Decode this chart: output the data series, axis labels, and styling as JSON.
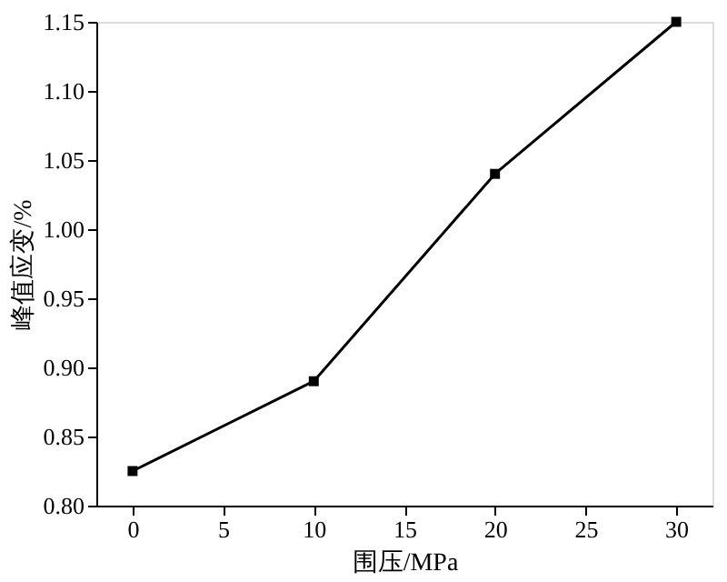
{
  "chart_data": {
    "type": "line",
    "xlabel": "围压/MPa",
    "ylabel": "峰值应变/%",
    "x": [
      0,
      10,
      20,
      30
    ],
    "series": [
      {
        "color": "#000000",
        "values": [
          0.825,
          0.89,
          1.04,
          1.15
        ]
      }
    ],
    "xlim": [
      -2,
      32
    ],
    "xticks": [
      0,
      5,
      10,
      15,
      20,
      25,
      30
    ],
    "ylim": [
      0.8,
      1.15
    ],
    "yticks": [
      {
        "value": 0.8,
        "label": "0.80"
      },
      0.85,
      {
        "value": 0.9,
        "label": "0.90"
      },
      0.95,
      {
        "value": 1.0,
        "label": "1.00"
      },
      1.05,
      {
        "value": 1.1,
        "label": "1.10"
      },
      1.15
    ],
    "grid": false,
    "marker": "square",
    "line_style": "solid"
  }
}
